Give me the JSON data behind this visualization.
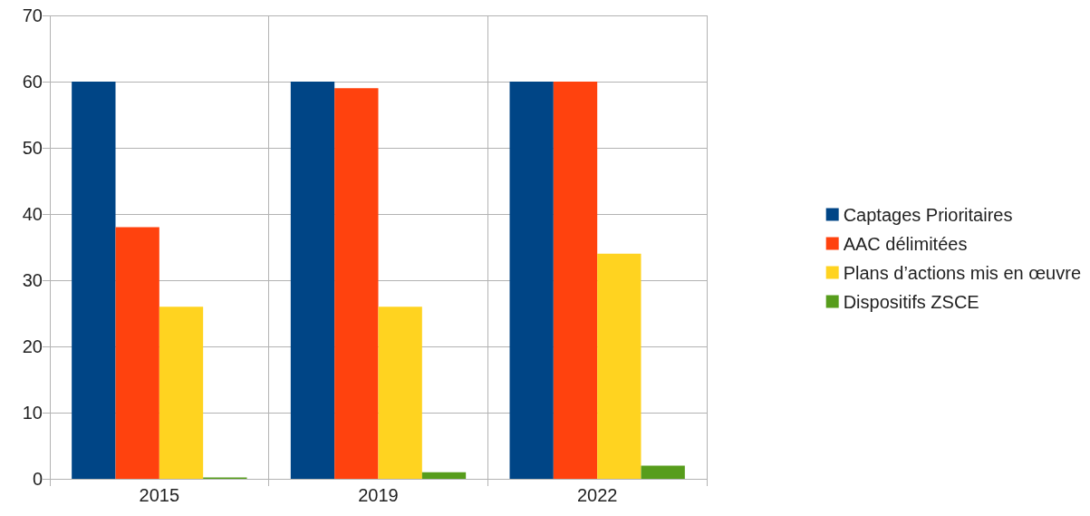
{
  "chart_data": {
    "type": "bar",
    "categories": [
      "2015",
      "2019",
      "2022"
    ],
    "series": [
      {
        "name": "Captages Prioritaires",
        "color": "#004586",
        "values": [
          60,
          60,
          60
        ]
      },
      {
        "name": "AAC délimitées",
        "color": "#ff420e",
        "values": [
          38,
          59,
          60
        ]
      },
      {
        "name": "Plans d’actions mis en œuvre",
        "color": "#ffd320",
        "values": [
          26,
          26,
          34
        ]
      },
      {
        "name": "Dispositifs ZSCE",
        "color": "#579d1c",
        "values": [
          0.2,
          1,
          2
        ]
      }
    ],
    "ylim": [
      0,
      70
    ],
    "yticks": [
      0,
      10,
      20,
      30,
      40,
      50,
      60,
      70
    ],
    "grid": true,
    "legend": "right"
  }
}
